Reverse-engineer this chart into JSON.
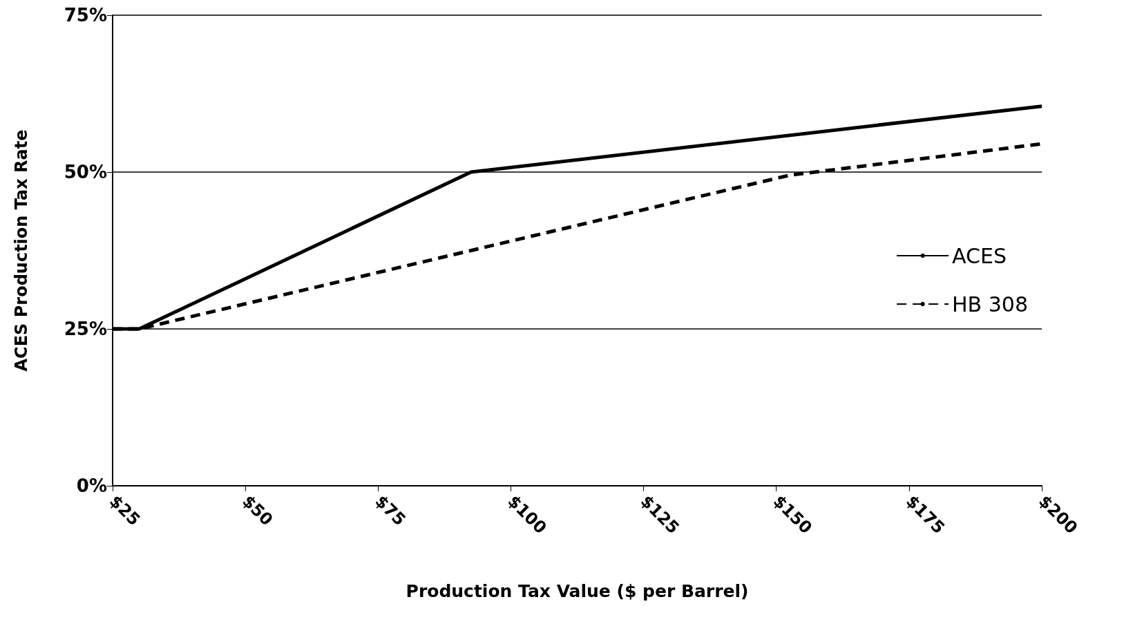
{
  "chart_data": {
    "type": "line",
    "xlabel": "Production Tax Value ($ per Barrel)",
    "ylabel": "ACES Production Tax Rate",
    "xlim": [
      25,
      200
    ],
    "xticks": [
      {
        "value": 25,
        "label": "$25"
      },
      {
        "value": 50,
        "label": "$50"
      },
      {
        "value": 75,
        "label": "$75"
      },
      {
        "value": 100,
        "label": "$100"
      },
      {
        "value": 125,
        "label": "$125"
      },
      {
        "value": 150,
        "label": "$150"
      },
      {
        "value": 175,
        "label": "$175"
      },
      {
        "value": 200,
        "label": "$200"
      }
    ],
    "ylim": [
      0,
      75
    ],
    "yticks": [
      {
        "value": 0,
        "label": "0%"
      },
      {
        "value": 25,
        "label": "25%"
      },
      {
        "value": 50,
        "label": "50%"
      },
      {
        "value": 75,
        "label": "75%"
      }
    ],
    "grid": "y",
    "legend": "right",
    "marker": "none",
    "series": [
      {
        "name": "ACES",
        "color": "#000000",
        "line_style": "solid",
        "x": [
          25,
          30,
          92.5,
          200
        ],
        "values": [
          25,
          25,
          50,
          60.5
        ]
      },
      {
        "name": "HB 308",
        "color": "#000000",
        "line_style": "dashed",
        "x": [
          25,
          30,
          152.5,
          200
        ],
        "values": [
          25,
          25,
          49.5,
          54.5
        ]
      }
    ]
  }
}
